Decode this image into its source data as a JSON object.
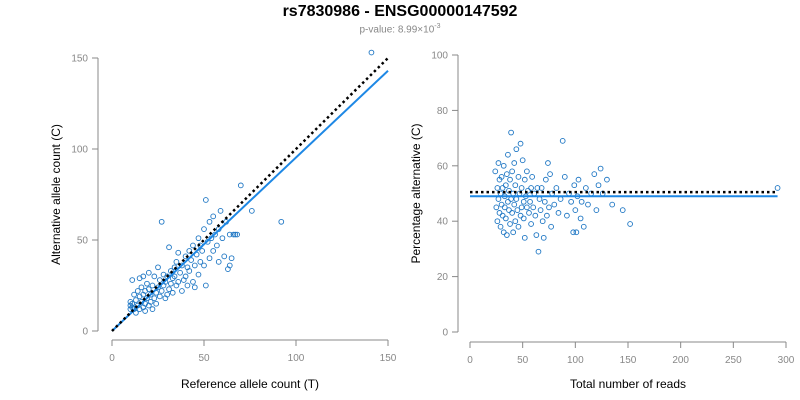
{
  "header": {
    "title": "rs7830986 - ENSG00000147592",
    "pvalue_prefix": "p-value: 8.99×10",
    "pvalue_exponent": "-3"
  },
  "colors": {
    "points": "#1f77c4",
    "fit": "#1e88e5",
    "expected": "#000000",
    "axis": "#888888"
  },
  "chart_data": [
    {
      "type": "scatter",
      "title": "",
      "xlabel": "Reference allele count (T)",
      "ylabel": "Alternative allele count (C)",
      "xlim": [
        0,
        150
      ],
      "ylim": [
        0,
        150
      ],
      "xticks": [
        0,
        50,
        100,
        150
      ],
      "yticks": [
        0,
        50,
        100,
        150
      ],
      "grid": false,
      "fit_line": {
        "x": [
          0,
          150
        ],
        "y": [
          0,
          143
        ]
      },
      "expected_line": {
        "x": [
          0,
          150
        ],
        "y": [
          0,
          150
        ]
      },
      "points": [
        [
          10,
          12
        ],
        [
          10,
          14
        ],
        [
          10,
          16
        ],
        [
          11,
          13
        ],
        [
          11,
          15
        ],
        [
          11,
          28
        ],
        [
          12,
          12
        ],
        [
          12,
          20
        ],
        [
          13,
          10
        ],
        [
          13,
          17
        ],
        [
          14,
          14
        ],
        [
          14,
          22
        ],
        [
          15,
          12
        ],
        [
          15,
          19
        ],
        [
          15,
          29
        ],
        [
          16,
          16
        ],
        [
          16,
          24
        ],
        [
          17,
          13
        ],
        [
          17,
          20
        ],
        [
          17,
          30
        ],
        [
          18,
          11
        ],
        [
          18,
          15
        ],
        [
          18,
          22
        ],
        [
          19,
          18
        ],
        [
          19,
          26
        ],
        [
          20,
          14
        ],
        [
          20,
          23
        ],
        [
          20,
          32
        ],
        [
          21,
          16
        ],
        [
          21,
          20
        ],
        [
          22,
          12
        ],
        [
          22,
          25
        ],
        [
          23,
          18
        ],
        [
          23,
          30
        ],
        [
          24,
          21
        ],
        [
          24,
          15
        ],
        [
          25,
          24
        ],
        [
          25,
          35
        ],
        [
          26,
          19
        ],
        [
          26,
          28
        ],
        [
          27,
          22
        ],
        [
          27,
          60
        ],
        [
          28,
          25
        ],
        [
          28,
          31
        ],
        [
          29,
          18
        ],
        [
          29,
          27
        ],
        [
          30,
          20
        ],
        [
          30,
          30
        ],
        [
          31,
          23
        ],
        [
          31,
          46
        ],
        [
          32,
          26
        ],
        [
          32,
          33
        ],
        [
          33,
          21
        ],
        [
          33,
          29
        ],
        [
          34,
          35
        ],
        [
          34,
          30
        ],
        [
          35,
          25
        ],
        [
          35,
          38
        ],
        [
          36,
          27
        ],
        [
          36,
          43
        ],
        [
          37,
          32
        ],
        [
          38,
          22
        ],
        [
          38,
          36
        ],
        [
          39,
          28
        ],
        [
          40,
          30
        ],
        [
          40,
          41
        ],
        [
          41,
          25
        ],
        [
          41,
          35
        ],
        [
          42,
          33
        ],
        [
          42,
          44
        ],
        [
          43,
          39
        ],
        [
          44,
          27
        ],
        [
          44,
          47
        ],
        [
          45,
          36
        ],
        [
          45,
          24
        ],
        [
          46,
          42
        ],
        [
          47,
          31
        ],
        [
          47,
          51
        ],
        [
          48,
          38
        ],
        [
          48,
          47
        ],
        [
          49,
          44
        ],
        [
          50,
          56
        ],
        [
          50,
          36
        ],
        [
          51,
          25
        ],
        [
          51,
          72
        ],
        [
          52,
          49
        ],
        [
          53,
          40
        ],
        [
          53,
          60
        ],
        [
          54,
          51
        ],
        [
          55,
          44
        ],
        [
          55,
          63
        ],
        [
          56,
          53
        ],
        [
          57,
          47
        ],
        [
          58,
          56
        ],
        [
          58,
          38
        ],
        [
          59,
          66
        ],
        [
          60,
          51
        ],
        [
          61,
          41
        ],
        [
          62,
          60
        ],
        [
          63,
          34
        ],
        [
          64,
          53
        ],
        [
          64,
          36
        ],
        [
          65,
          40
        ],
        [
          66,
          53
        ],
        [
          67,
          53
        ],
        [
          68,
          53
        ],
        [
          70,
          80
        ],
        [
          76,
          66
        ],
        [
          92,
          60
        ],
        [
          141,
          153
        ]
      ]
    },
    {
      "type": "scatter",
      "title": "",
      "xlabel": "Total number of reads",
      "ylabel": "Percentage alternative (C)",
      "xlim": [
        0,
        300
      ],
      "ylim": [
        0,
        100
      ],
      "xticks": [
        0,
        50,
        100,
        150,
        200,
        250,
        300
      ],
      "yticks": [
        0,
        20,
        40,
        60,
        80,
        100
      ],
      "grid": false,
      "fit_line": {
        "x": [
          0,
          292
        ],
        "y": [
          49,
          49
        ]
      },
      "expected_line": {
        "x": [
          0,
          292
        ],
        "y": [
          50.5,
          50.5
        ]
      },
      "points": [
        [
          24,
          58
        ],
        [
          25,
          45
        ],
        [
          26,
          52
        ],
        [
          26,
          40
        ],
        [
          27,
          61
        ],
        [
          27,
          48
        ],
        [
          28,
          55
        ],
        [
          28,
          43
        ],
        [
          29,
          50
        ],
        [
          29,
          38
        ],
        [
          30,
          46
        ],
        [
          30,
          56
        ],
        [
          31,
          42
        ],
        [
          31,
          52
        ],
        [
          32,
          60
        ],
        [
          32,
          36
        ],
        [
          33,
          49
        ],
        [
          33,
          45
        ],
        [
          34,
          53
        ],
        [
          34,
          41
        ],
        [
          35,
          57
        ],
        [
          35,
          35
        ],
        [
          36,
          47
        ],
        [
          36,
          64
        ],
        [
          37,
          44
        ],
        [
          37,
          51
        ],
        [
          38,
          39
        ],
        [
          38,
          55
        ],
        [
          39,
          48
        ],
        [
          39,
          72
        ],
        [
          40,
          43
        ],
        [
          40,
          58
        ],
        [
          41,
          50
        ],
        [
          41,
          36
        ],
        [
          42,
          46
        ],
        [
          42,
          61
        ],
        [
          43,
          53
        ],
        [
          43,
          40
        ],
        [
          44,
          48
        ],
        [
          44,
          66
        ],
        [
          45,
          44
        ],
        [
          46,
          56
        ],
        [
          46,
          38
        ],
        [
          47,
          50
        ],
        [
          48,
          42
        ],
        [
          48,
          68
        ],
        [
          49,
          52
        ],
        [
          49,
          45
        ],
        [
          50,
          62
        ],
        [
          51,
          47
        ],
        [
          51,
          41
        ],
        [
          52,
          55
        ],
        [
          52,
          34
        ],
        [
          53,
          49
        ],
        [
          54,
          45
        ],
        [
          54,
          58
        ],
        [
          55,
          51
        ],
        [
          56,
          43
        ],
        [
          57,
          47
        ],
        [
          58,
          52
        ],
        [
          58,
          39
        ],
        [
          59,
          56
        ],
        [
          60,
          45
        ],
        [
          61,
          50
        ],
        [
          62,
          42
        ],
        [
          63,
          35
        ],
        [
          64,
          52
        ],
        [
          65,
          29
        ],
        [
          66,
          48
        ],
        [
          67,
          44
        ],
        [
          68,
          52
        ],
        [
          69,
          40
        ],
        [
          70,
          34
        ],
        [
          71,
          47
        ],
        [
          72,
          55
        ],
        [
          73,
          42
        ],
        [
          74,
          61
        ],
        [
          75,
          45
        ],
        [
          76,
          57
        ],
        [
          77,
          38
        ],
        [
          78,
          50
        ],
        [
          80,
          46
        ],
        [
          82,
          52
        ],
        [
          84,
          43
        ],
        [
          86,
          48
        ],
        [
          88,
          69
        ],
        [
          90,
          56
        ],
        [
          92,
          42
        ],
        [
          94,
          50
        ],
        [
          96,
          47
        ],
        [
          98,
          36
        ],
        [
          99,
          53
        ],
        [
          100,
          44
        ],
        [
          101,
          36
        ],
        [
          102,
          49
        ],
        [
          103,
          55
        ],
        [
          105,
          41
        ],
        [
          106,
          47
        ],
        [
          108,
          38
        ],
        [
          110,
          52
        ],
        [
          112,
          46
        ],
        [
          115,
          50
        ],
        [
          118,
          57
        ],
        [
          120,
          44
        ],
        [
          122,
          53
        ],
        [
          124,
          59
        ],
        [
          126,
          50
        ],
        [
          130,
          55
        ],
        [
          135,
          46
        ],
        [
          145,
          44
        ],
        [
          152,
          39
        ],
        [
          292,
          52
        ]
      ]
    }
  ]
}
